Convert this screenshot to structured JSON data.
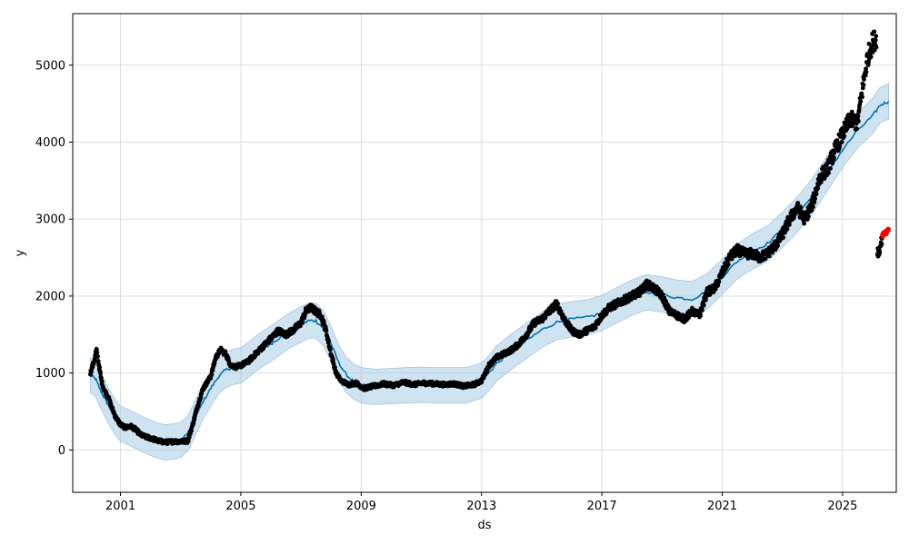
{
  "chart_data": {
    "type": "line",
    "title": "",
    "xlabel": "ds",
    "ylabel": "y",
    "xlim": [
      "1999-06-01",
      "2026-10-15"
    ],
    "ylim": [
      -550,
      5670
    ],
    "grid": true,
    "x_ticks": [
      "2001",
      "2005",
      "2009",
      "2013",
      "2017",
      "2021",
      "2025"
    ],
    "y_ticks": [
      0,
      1000,
      2000,
      3000,
      4000,
      5000
    ],
    "colors": {
      "observed": "#000000",
      "forecast": "#0072B2",
      "interval": "#a9cce6",
      "anomaly": "#ff0000",
      "grid": "#dddddd"
    },
    "series": [
      {
        "name": "forecast",
        "kind": "line",
        "points": [
          [
            "2000-01-01",
            970
          ],
          [
            "2000-03-01",
            930
          ],
          [
            "2000-05-01",
            780
          ],
          [
            "2000-07-01",
            650
          ],
          [
            "2000-09-01",
            530
          ],
          [
            "2000-11-01",
            420
          ],
          [
            "2001-01-01",
            340
          ],
          [
            "2001-04-01",
            300
          ],
          [
            "2001-07-01",
            250
          ],
          [
            "2001-10-01",
            200
          ],
          [
            "2002-01-01",
            160
          ],
          [
            "2002-04-01",
            120
          ],
          [
            "2002-07-01",
            100
          ],
          [
            "2002-10-01",
            110
          ],
          [
            "2003-01-01",
            130
          ],
          [
            "2003-04-01",
            220
          ],
          [
            "2003-07-01",
            420
          ],
          [
            "2003-10-01",
            630
          ],
          [
            "2004-01-01",
            800
          ],
          [
            "2004-04-01",
            950
          ],
          [
            "2004-07-01",
            1040
          ],
          [
            "2004-10-01",
            1080
          ],
          [
            "2005-01-01",
            1100
          ],
          [
            "2005-04-01",
            1170
          ],
          [
            "2005-07-01",
            1250
          ],
          [
            "2005-10-01",
            1320
          ],
          [
            "2006-01-01",
            1380
          ],
          [
            "2006-04-01",
            1450
          ],
          [
            "2006-07-01",
            1520
          ],
          [
            "2006-10-01",
            1580
          ],
          [
            "2007-01-01",
            1630
          ],
          [
            "2007-04-01",
            1680
          ],
          [
            "2007-07-01",
            1680
          ],
          [
            "2007-10-01",
            1580
          ],
          [
            "2008-01-01",
            1380
          ],
          [
            "2008-04-01",
            1140
          ],
          [
            "2008-07-01",
            980
          ],
          [
            "2008-10-01",
            890
          ],
          [
            "2009-01-01",
            840
          ],
          [
            "2009-07-01",
            820
          ],
          [
            "2010-01-01",
            830
          ],
          [
            "2010-07-01",
            840
          ],
          [
            "2011-01-01",
            850
          ],
          [
            "2011-07-01",
            840
          ],
          [
            "2012-01-01",
            840
          ],
          [
            "2012-07-01",
            840
          ],
          [
            "2013-01-01",
            900
          ],
          [
            "2013-04-01",
            1000
          ],
          [
            "2013-07-01",
            1120
          ],
          [
            "2014-01-01",
            1280
          ],
          [
            "2014-07-01",
            1420
          ],
          [
            "2015-01-01",
            1560
          ],
          [
            "2015-07-01",
            1660
          ],
          [
            "2016-01-01",
            1700
          ],
          [
            "2016-07-01",
            1720
          ],
          [
            "2017-01-01",
            1780
          ],
          [
            "2017-07-01",
            1880
          ],
          [
            "2018-01-01",
            1980
          ],
          [
            "2018-07-01",
            2050
          ],
          [
            "2019-01-01",
            2020
          ],
          [
            "2019-07-01",
            1980
          ],
          [
            "2020-01-01",
            1960
          ],
          [
            "2020-07-01",
            2060
          ],
          [
            "2021-01-01",
            2250
          ],
          [
            "2021-07-01",
            2450
          ],
          [
            "2022-01-01",
            2580
          ],
          [
            "2022-07-01",
            2680
          ],
          [
            "2023-01-01",
            2860
          ],
          [
            "2023-07-01",
            3060
          ],
          [
            "2024-01-01",
            3300
          ],
          [
            "2024-07-01",
            3600
          ],
          [
            "2025-01-01",
            3900
          ],
          [
            "2025-07-01",
            4150
          ],
          [
            "2026-01-01",
            4340
          ],
          [
            "2026-04-01",
            4480
          ],
          [
            "2026-07-15",
            4530
          ]
        ]
      },
      {
        "name": "observed",
        "kind": "points",
        "points": [
          [
            "2000-01-01",
            1000
          ],
          [
            "2000-02-15",
            1150
          ],
          [
            "2000-03-15",
            1300
          ],
          [
            "2000-04-15",
            1100
          ],
          [
            "2000-05-15",
            900
          ],
          [
            "2000-06-15",
            780
          ],
          [
            "2000-08-01",
            700
          ],
          [
            "2000-09-15",
            560
          ],
          [
            "2000-11-01",
            430
          ],
          [
            "2001-01-01",
            330
          ],
          [
            "2001-03-01",
            290
          ],
          [
            "2001-05-01",
            310
          ],
          [
            "2001-07-01",
            270
          ],
          [
            "2001-09-01",
            200
          ],
          [
            "2001-11-01",
            170
          ],
          [
            "2002-01-15",
            150
          ],
          [
            "2002-04-01",
            120
          ],
          [
            "2002-07-01",
            100
          ],
          [
            "2002-10-01",
            110
          ],
          [
            "2003-01-01",
            110
          ],
          [
            "2003-04-01",
            120
          ],
          [
            "2003-06-01",
            350
          ],
          [
            "2003-08-01",
            600
          ],
          [
            "2003-10-01",
            800
          ],
          [
            "2004-01-01",
            950
          ],
          [
            "2004-03-01",
            1200
          ],
          [
            "2004-05-01",
            1300
          ],
          [
            "2004-07-01",
            1250
          ],
          [
            "2004-09-01",
            1100
          ],
          [
            "2004-11-01",
            1080
          ],
          [
            "2005-01-01",
            1100
          ],
          [
            "2005-04-01",
            1150
          ],
          [
            "2005-07-01",
            1250
          ],
          [
            "2005-10-01",
            1350
          ],
          [
            "2006-01-01",
            1450
          ],
          [
            "2006-04-01",
            1550
          ],
          [
            "2006-07-01",
            1500
          ],
          [
            "2006-10-01",
            1560
          ],
          [
            "2007-01-01",
            1650
          ],
          [
            "2007-03-01",
            1800
          ],
          [
            "2007-05-01",
            1850
          ],
          [
            "2007-07-01",
            1800
          ],
          [
            "2007-09-01",
            1750
          ],
          [
            "2007-11-01",
            1550
          ],
          [
            "2008-01-01",
            1250
          ],
          [
            "2008-03-01",
            1000
          ],
          [
            "2008-05-01",
            900
          ],
          [
            "2008-08-01",
            850
          ],
          [
            "2008-11-01",
            870
          ],
          [
            "2009-02-01",
            800
          ],
          [
            "2009-06-01",
            830
          ],
          [
            "2009-10-01",
            860
          ],
          [
            "2010-02-01",
            840
          ],
          [
            "2010-06-01",
            880
          ],
          [
            "2010-10-01",
            850
          ],
          [
            "2011-02-01",
            870
          ],
          [
            "2011-06-01",
            860
          ],
          [
            "2011-10-01",
            850
          ],
          [
            "2012-02-01",
            860
          ],
          [
            "2012-06-01",
            830
          ],
          [
            "2012-10-01",
            850
          ],
          [
            "2013-01-01",
            900
          ],
          [
            "2013-04-01",
            1100
          ],
          [
            "2013-07-01",
            1200
          ],
          [
            "2013-10-01",
            1250
          ],
          [
            "2014-01-01",
            1300
          ],
          [
            "2014-04-01",
            1380
          ],
          [
            "2014-07-01",
            1500
          ],
          [
            "2014-10-01",
            1650
          ],
          [
            "2015-01-01",
            1700
          ],
          [
            "2015-04-01",
            1800
          ],
          [
            "2015-07-01",
            1900
          ],
          [
            "2015-10-01",
            1700
          ],
          [
            "2016-01-01",
            1550
          ],
          [
            "2016-04-01",
            1500
          ],
          [
            "2016-07-01",
            1550
          ],
          [
            "2016-10-01",
            1600
          ],
          [
            "2017-01-01",
            1750
          ],
          [
            "2017-04-01",
            1850
          ],
          [
            "2017-07-01",
            1900
          ],
          [
            "2017-10-01",
            1950
          ],
          [
            "2018-01-01",
            2000
          ],
          [
            "2018-04-01",
            2050
          ],
          [
            "2018-07-01",
            2150
          ],
          [
            "2018-10-01",
            2100
          ],
          [
            "2019-01-01",
            2000
          ],
          [
            "2019-04-01",
            1800
          ],
          [
            "2019-07-01",
            1750
          ],
          [
            "2019-10-01",
            1700
          ],
          [
            "2020-01-01",
            1800
          ],
          [
            "2020-04-01",
            1750
          ],
          [
            "2020-07-01",
            2050
          ],
          [
            "2020-10-01",
            2100
          ],
          [
            "2021-01-01",
            2300
          ],
          [
            "2021-04-01",
            2500
          ],
          [
            "2021-07-01",
            2600
          ],
          [
            "2021-10-01",
            2550
          ],
          [
            "2022-01-01",
            2550
          ],
          [
            "2022-04-01",
            2500
          ],
          [
            "2022-07-01",
            2550
          ],
          [
            "2022-10-01",
            2650
          ],
          [
            "2023-01-01",
            2800
          ],
          [
            "2023-04-01",
            3000
          ],
          [
            "2023-07-01",
            3150
          ],
          [
            "2023-10-01",
            3000
          ],
          [
            "2024-01-01",
            3200
          ],
          [
            "2024-04-01",
            3550
          ],
          [
            "2024-07-01",
            3650
          ],
          [
            "2024-10-01",
            3900
          ],
          [
            "2025-01-01",
            4100
          ],
          [
            "2025-04-01",
            4300
          ],
          [
            "2025-07-01",
            4250
          ],
          [
            "2025-09-01",
            4700
          ],
          [
            "2025-11-01",
            5100
          ],
          [
            "2026-01-01",
            5300
          ],
          [
            "2026-02-15",
            5350
          ],
          [
            "2026-03-01",
            2600
          ],
          [
            "2026-03-20",
            2550
          ],
          [
            "2026-04-10",
            2700
          ],
          [
            "2026-04-25",
            2750
          ]
        ]
      },
      {
        "name": "anomaly",
        "kind": "points",
        "points": [
          [
            "2026-05-05",
            2790
          ],
          [
            "2026-05-20",
            2810
          ],
          [
            "2026-06-05",
            2820
          ],
          [
            "2026-06-20",
            2840
          ],
          [
            "2026-07-05",
            2860
          ]
        ]
      }
    ],
    "interval_halfwidth": 230
  }
}
